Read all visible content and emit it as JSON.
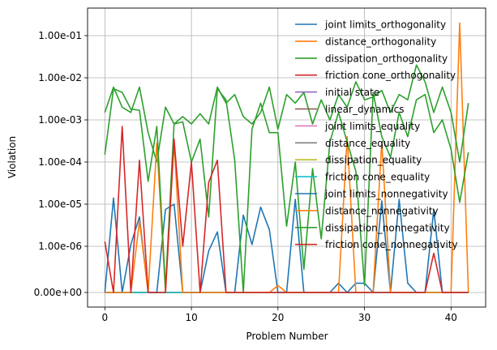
{
  "chart_data": {
    "type": "line",
    "xlabel": "Problem Number",
    "ylabel": "Violation",
    "yscale": "symlog",
    "xlim": [
      -2,
      44
    ],
    "xticks": [
      0,
      10,
      20,
      30,
      40
    ],
    "xtick_labels": [
      "0",
      "10",
      "20",
      "30",
      "40"
    ],
    "yticks": [
      0,
      1e-06,
      1e-05,
      0.0001,
      0.001,
      0.01,
      0.1
    ],
    "ytick_labels": [
      "0.00e+00",
      "1.00e-06",
      "1.00e-05",
      "1.00e-04",
      "1.00e-03",
      "1.00e-02",
      "1.00e-01"
    ],
    "grid": true,
    "legend_position": "upper right",
    "x": [
      0,
      1,
      2,
      3,
      4,
      5,
      6,
      7,
      8,
      9,
      10,
      11,
      12,
      13,
      14,
      15,
      16,
      17,
      18,
      19,
      20,
      21,
      22,
      23,
      24,
      25,
      26,
      27,
      28,
      29,
      30,
      31,
      32,
      33,
      34,
      35,
      36,
      37,
      38,
      39,
      40,
      41,
      42
    ],
    "series": [
      {
        "name": "joint limits_orthogonality",
        "color": "#1f77b4",
        "values": [
          0,
          0,
          0,
          0,
          0,
          0,
          0,
          0,
          0,
          0,
          0,
          0,
          0,
          0,
          0,
          0,
          0,
          0,
          0,
          0,
          0,
          0,
          0,
          0,
          0,
          0,
          0,
          0,
          0,
          0,
          0,
          0,
          0,
          0,
          0,
          0,
          0,
          0,
          0,
          0,
          0,
          0,
          0
        ]
      },
      {
        "name": "distance_orthogonality",
        "color": "#ff7f0e",
        "values": [
          0,
          0,
          0,
          0,
          0,
          0,
          0,
          0,
          0,
          0,
          0,
          0,
          0,
          0,
          0,
          0,
          0,
          0,
          0,
          0,
          0,
          0,
          0,
          0,
          0,
          0,
          0,
          0,
          0,
          0,
          0,
          0,
          0,
          0,
          0,
          0,
          0,
          0,
          0,
          0,
          0,
          0.2,
          0
        ]
      },
      {
        "name": "dissipation_orthogonality",
        "color": "#2ca02c",
        "values": [
          0.0015,
          0.006,
          0.002,
          0.0015,
          0.006,
          0.0005,
          0.0001,
          0.002,
          0.0008,
          0.0012,
          0.0008,
          0.0014,
          0.0008,
          0.006,
          0.0025,
          0.004,
          0.0012,
          0.0008,
          0.0015,
          0.006,
          0.0006,
          0.004,
          0.0025,
          0.0045,
          0.0008,
          0.003,
          0.001,
          0.004,
          0.002,
          0.008,
          0.003,
          0.0035,
          0.005,
          0.0015,
          0.004,
          0.003,
          0.02,
          0.008,
          0.0015,
          0.006,
          0.0015,
          0.0001,
          0.0025
        ]
      },
      {
        "name": "friction cone_orthogonality",
        "color": "#d62728",
        "values": [
          0,
          0,
          0,
          0,
          0,
          0,
          0,
          0,
          0,
          0,
          0,
          0,
          0,
          0,
          0,
          0,
          0,
          0,
          0,
          0,
          0,
          0,
          0,
          0,
          0,
          0,
          0,
          0,
          0,
          0,
          0,
          0,
          0,
          0,
          0,
          0,
          0,
          0,
          0,
          0,
          0,
          0,
          0
        ]
      },
      {
        "name": "initial state",
        "color": "#9467bd",
        "values": [
          0,
          0,
          0,
          0,
          0,
          0,
          0,
          0,
          0,
          0,
          0,
          0,
          0,
          0,
          0,
          0,
          0,
          0,
          0,
          0,
          0,
          0,
          0,
          0,
          0,
          0,
          0,
          0,
          0,
          0,
          0,
          0,
          0,
          0,
          0,
          0,
          0,
          0,
          0,
          0,
          0,
          0,
          0
        ]
      },
      {
        "name": "linear_dynamics",
        "color": "#8c564b",
        "values": [
          0,
          0,
          0,
          0,
          0,
          0,
          0,
          0,
          0,
          0,
          0,
          0,
          0,
          0,
          0,
          0,
          0,
          0,
          0,
          0,
          0,
          0,
          0,
          0,
          0,
          0,
          0,
          0,
          0,
          0,
          0,
          0,
          0,
          0,
          0,
          0,
          0,
          0,
          0,
          0,
          0,
          0,
          0
        ]
      },
      {
        "name": "joint limits_equality",
        "color": "#e377c2",
        "values": [
          0,
          0,
          0,
          0,
          0,
          0,
          0,
          0,
          0,
          0,
          0,
          0,
          0,
          0,
          0,
          0,
          0,
          0,
          0,
          0,
          0,
          0,
          0,
          0,
          0,
          0,
          0,
          0,
          0,
          0,
          0,
          0,
          0,
          0,
          0,
          0,
          0,
          0,
          0,
          0,
          0,
          0,
          0
        ]
      },
      {
        "name": "distance_equality",
        "color": "#7f7f7f",
        "values": [
          0,
          0,
          0,
          0,
          0,
          0,
          0,
          0,
          0,
          0,
          0,
          0,
          0,
          0,
          0,
          0,
          0,
          0,
          0,
          0,
          0,
          0,
          0,
          0,
          0,
          0,
          0,
          0,
          0,
          0,
          0,
          0,
          0,
          0,
          0,
          0,
          0,
          0,
          0,
          0,
          0,
          0,
          0
        ]
      },
      {
        "name": "dissipation_equality",
        "color": "#bcbd22",
        "values": [
          0,
          0,
          0,
          0,
          0,
          0,
          0,
          0,
          0,
          0,
          0,
          0,
          0,
          0,
          0,
          0,
          0,
          0,
          0,
          0,
          0,
          0,
          0,
          0,
          0,
          0,
          0,
          0,
          0,
          0,
          0,
          0,
          0,
          0,
          0,
          0,
          0,
          0,
          0,
          0,
          0,
          0,
          0
        ]
      },
      {
        "name": "friction cone_equality",
        "color": "#17becf",
        "values": [
          0,
          0,
          0,
          0,
          0,
          0,
          0,
          0,
          0,
          0,
          0,
          0,
          0,
          0,
          0,
          0,
          0,
          0,
          0,
          0,
          0,
          0,
          0,
          0,
          0,
          0,
          0,
          0,
          0,
          0,
          0,
          0,
          0,
          0,
          0,
          0,
          0,
          0,
          0,
          0,
          0,
          0,
          0
        ]
      },
      {
        "name": "joint limits_nonnegativity",
        "color": "#1f77b4",
        "values": [
          0,
          1.4e-05,
          0,
          1.1e-06,
          5e-06,
          0,
          0,
          7.5e-06,
          1e-05,
          0,
          0,
          0,
          9e-07,
          2.2e-06,
          0,
          0,
          5.5e-06,
          1.1e-06,
          8.5e-06,
          2.5e-06,
          0,
          0,
          1.3e-05,
          0,
          0,
          0,
          0,
          2e-07,
          0,
          2e-07,
          2e-07,
          0,
          1.2e-05,
          0,
          1.3e-05,
          2e-07,
          0,
          0,
          7.5e-06,
          0,
          0,
          0,
          0
        ]
      },
      {
        "name": "distance_nonnegativity",
        "color": "#ff7f0e",
        "values": [
          0,
          0,
          0,
          0,
          4e-06,
          0,
          0.00028,
          0,
          0.0003,
          0,
          0,
          0,
          0,
          0,
          0,
          0,
          0,
          0,
          0,
          0,
          1.5e-07,
          0,
          0,
          0,
          0,
          0,
          0,
          0,
          0.0004,
          0,
          0,
          0,
          0.0003,
          0,
          0,
          0,
          0,
          0,
          0,
          0,
          0,
          0,
          0
        ]
      },
      {
        "name": "dissipation_nonnegativity",
        "color": "#2ca02c",
        "values": [
          0.00015,
          0.0055,
          0.0045,
          0.0018,
          0.0017,
          3.5e-05,
          0.0007,
          1e-07,
          0.0008,
          0.0009,
          0.0001,
          0.00035,
          5e-06,
          0.0055,
          0.003,
          0.00011,
          0,
          0.0006,
          0.0025,
          0.0005,
          0.0005,
          3e-06,
          0.0001,
          5e-07,
          7e-05,
          1.5e-06,
          0.0003,
          0.0015,
          0.0003,
          6e-05,
          1.5e-07,
          0.0045,
          0.0004,
          0.00013,
          0.0015,
          0.0004,
          0.003,
          0.004,
          0.0005,
          0.001,
          0.0002,
          1.1e-05,
          0.00017
        ]
      },
      {
        "name": "friction cone_nonnegativity",
        "color": "#d62728",
        "values": [
          1.3e-06,
          0,
          0.0007,
          0,
          0.00011,
          0,
          0,
          0,
          0.00035,
          1e-06,
          0.0001,
          0,
          3.3e-05,
          0.00011,
          0,
          0,
          0,
          0,
          0,
          0,
          0,
          0,
          0,
          0,
          0,
          0,
          0,
          0,
          0,
          0,
          0,
          0,
          0,
          0,
          0,
          0,
          0,
          0,
          8.5e-07,
          0,
          0,
          0,
          0
        ]
      }
    ]
  }
}
